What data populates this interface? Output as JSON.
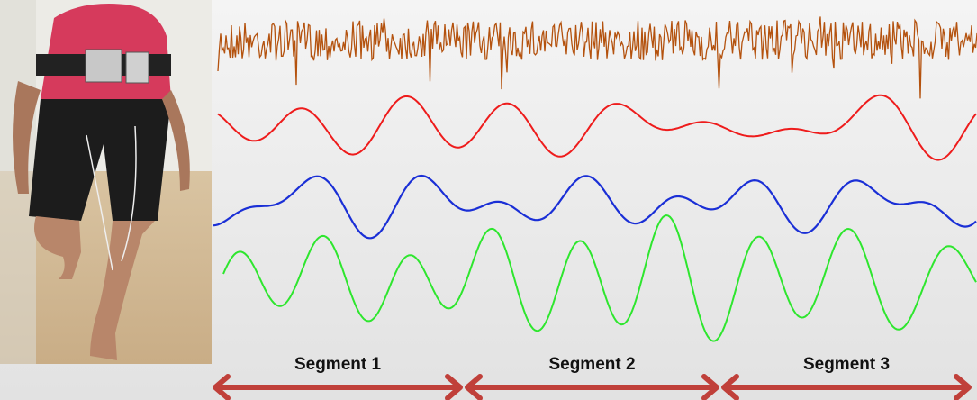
{
  "segments": [
    {
      "label": "Segment 1"
    },
    {
      "label": "Segment 2"
    },
    {
      "label": "Segment 3"
    }
  ]
}
